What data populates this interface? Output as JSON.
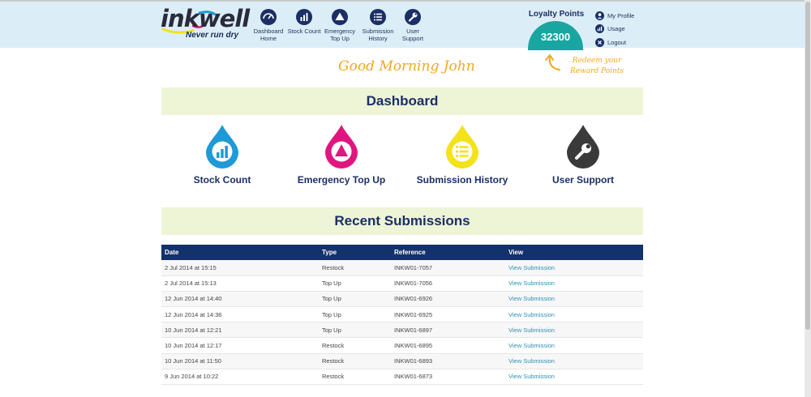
{
  "brand": {
    "logo_text": "inkwell",
    "tagline": "Never run dry"
  },
  "nav": [
    {
      "label": "Dashboard Home",
      "icon": "dashboard-gauge-icon"
    },
    {
      "label": "Stock Count",
      "icon": "bar-chart-icon"
    },
    {
      "label": "Emergency Top Up",
      "icon": "warning-triangle-icon"
    },
    {
      "label": "Submission History",
      "icon": "list-icon"
    },
    {
      "label": "User Support",
      "icon": "wrench-icon"
    }
  ],
  "loyalty": {
    "title": "Loyalty Points",
    "points": "32300",
    "redeem_text": "Redeem your Reward Points"
  },
  "user_menu": [
    {
      "label": "My Profile",
      "icon": "user-icon"
    },
    {
      "label": "Usage",
      "icon": "usage-chart-icon"
    },
    {
      "label": "Logout",
      "icon": "close-icon"
    }
  ],
  "greeting": "Good Morning John",
  "dashboard": {
    "title": "Dashboard",
    "tiles": [
      {
        "label": "Stock Count",
        "icon": "bar-chart-icon",
        "color": "#1e9ad6"
      },
      {
        "label": "Emergency Top Up",
        "icon": "warning-triangle-icon",
        "color": "#e0157f"
      },
      {
        "label": "Submission History",
        "icon": "list-icon",
        "color": "#f4e21a"
      },
      {
        "label": "User Support",
        "icon": "wrench-icon",
        "color": "#3a3a3a"
      }
    ]
  },
  "recent": {
    "title": "Recent Submissions",
    "columns": [
      "Date",
      "Type",
      "Reference",
      "View"
    ],
    "rows": [
      {
        "date": "2 Jul 2014 at 15:15",
        "type": "Restock",
        "reference": "INKW01-7057",
        "view": "View Submission"
      },
      {
        "date": "2 Jul 2014 at 15:13",
        "type": "Top Up",
        "reference": "INKW01-7056",
        "view": "View Submission"
      },
      {
        "date": "12 Jun 2014 at 14:40",
        "type": "Top Up",
        "reference": "INKW01-6926",
        "view": "View Submission"
      },
      {
        "date": "12 Jun 2014 at 14:36",
        "type": "Top Up",
        "reference": "INKW01-6925",
        "view": "View Submission"
      },
      {
        "date": "10 Jun 2014 at 12:21",
        "type": "Top Up",
        "reference": "INKW01-6897",
        "view": "View Submission"
      },
      {
        "date": "10 Jun 2014 at 12:17",
        "type": "Restock",
        "reference": "INKW01-6895",
        "view": "View Submission"
      },
      {
        "date": "10 Jun 2014 at 11:50",
        "type": "Restock",
        "reference": "INKW01-6893",
        "view": "View Submission"
      },
      {
        "date": "9 Jun 2014 at 10:22",
        "type": "Restock",
        "reference": "INKW01-6873",
        "view": "View Submission"
      }
    ]
  },
  "colors": {
    "header_bg": "#dbeef7",
    "navy": "#13316b",
    "teal": "#1aa6a0",
    "accent_orange": "#f0a823",
    "section_bg": "#eef4d6",
    "link": "#2f8fb5"
  }
}
